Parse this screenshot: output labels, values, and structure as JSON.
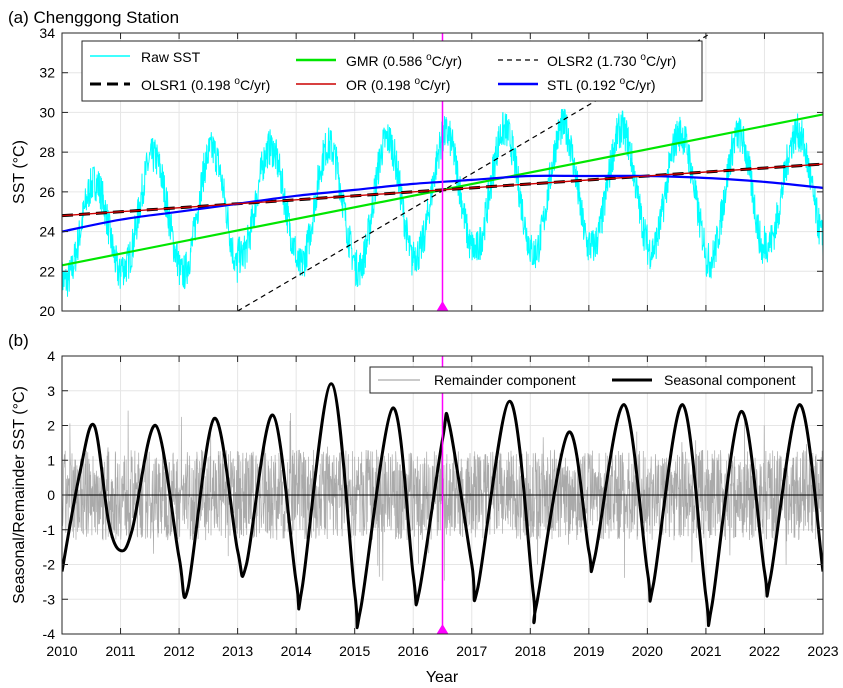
{
  "chart_data": [
    {
      "type": "line",
      "panel_label": "(a) Chenggong Station",
      "ylabel": "SST (°C)",
      "xlabel": "",
      "xlim": [
        2010,
        2023
      ],
      "ylim": [
        20,
        34
      ],
      "x_ticks": [
        2010,
        2011,
        2012,
        2013,
        2014,
        2015,
        2016,
        2017,
        2018,
        2019,
        2020,
        2021,
        2022,
        2023
      ],
      "y_ticks": [
        20,
        22,
        24,
        26,
        28,
        30,
        32,
        34
      ],
      "grid": true,
      "legend_position": "top",
      "vertical_marker": {
        "x": 2016.5,
        "color": "#ff00ff"
      },
      "raw_sst": {
        "name": "Raw SST",
        "color": "#00ffff",
        "annual_peak": [
          27.2,
          28.6,
          29.0,
          29.0,
          29.2,
          29.6,
          29.8,
          30.0,
          30.2,
          30.0,
          29.8,
          29.8,
          29.8
        ],
        "annual_trough": [
          20.8,
          21.4,
          21.0,
          22.0,
          21.4,
          21.2,
          22.0,
          22.2,
          22.0,
          22.4,
          22.2,
          21.6,
          22.6
        ]
      },
      "series": [
        {
          "name": "GMR",
          "rate_label": "(0.586 ",
          "unit_sup": "o",
          "unit_rest": "C/yr)",
          "color": "#00e600",
          "dash": "solid",
          "x": [
            2010,
            2023
          ],
          "y": [
            22.3,
            29.9
          ]
        },
        {
          "name": "OLSR2",
          "rate_label": "(1.730 ",
          "unit_sup": "o",
          "unit_rest": "C/yr)",
          "color": "#000000",
          "dash": "short-dash",
          "x": [
            2013.0,
            2023
          ],
          "y": [
            20.0,
            37.3
          ]
        },
        {
          "name": "OLSR1",
          "rate_label": "(0.198 ",
          "unit_sup": "o",
          "unit_rest": "C/yr)",
          "color": "#000000",
          "dash": "long-dash",
          "x": [
            2010,
            2023
          ],
          "y": [
            24.8,
            27.4
          ]
        },
        {
          "name": "OR",
          "rate_label": "(0.198 ",
          "unit_sup": "o",
          "unit_rest": "C/yr)",
          "color": "#cc0000",
          "dash": "solid",
          "x": [
            2010,
            2023
          ],
          "y": [
            24.8,
            27.4
          ]
        },
        {
          "name": "STL",
          "rate_label": "(0.192 ",
          "unit_sup": "o",
          "unit_rest": "C/yr)",
          "color": "#0000ff",
          "dash": "solid",
          "x": [
            2010,
            2011,
            2012,
            2013,
            2014,
            2015,
            2016,
            2017,
            2018,
            2019,
            2020,
            2021,
            2022,
            2023
          ],
          "y": [
            24.0,
            24.6,
            25.0,
            25.4,
            25.8,
            26.1,
            26.4,
            26.6,
            26.8,
            26.8,
            26.8,
            26.7,
            26.5,
            26.2
          ]
        }
      ],
      "legend_order": [
        "Raw SST",
        "GMR",
        "OLSR2",
        "OLSR1",
        "OR",
        "STL"
      ]
    },
    {
      "type": "line",
      "panel_label": "(b)",
      "ylabel": "Seasonal/Remainder SST (°C)",
      "xlabel": "Year",
      "xlim": [
        2010,
        2023
      ],
      "ylim": [
        -4,
        4
      ],
      "x_ticks": [
        2010,
        2011,
        2012,
        2013,
        2014,
        2015,
        2016,
        2017,
        2018,
        2019,
        2020,
        2021,
        2022,
        2023
      ],
      "y_ticks": [
        -4,
        -3,
        -2,
        -1,
        0,
        1,
        2,
        3,
        4
      ],
      "grid": true,
      "legend_position": "top-right",
      "vertical_marker": {
        "x": 2016.5,
        "color": "#ff00ff"
      },
      "series": [
        {
          "name": "Remainder component",
          "color": "#aaaaaa",
          "amplitude": 1.3
        },
        {
          "name": "Seasonal component",
          "color": "#000000",
          "x": [
            2010.0,
            2010.3,
            2010.55,
            2010.8,
            2011.0,
            2011.2,
            2011.6,
            2012.0,
            2012.15,
            2012.6,
            2013.0,
            2013.15,
            2013.6,
            2014.0,
            2014.1,
            2014.6,
            2015.0,
            2015.1,
            2015.65,
            2016.0,
            2016.1,
            2016.5,
            2016.62,
            2017.0,
            2017.1,
            2017.65,
            2018.05,
            2018.1,
            2018.65,
            2019.0,
            2019.1,
            2019.6,
            2020.0,
            2020.1,
            2020.6,
            2021.0,
            2021.1,
            2021.6,
            2022.0,
            2022.1,
            2022.6,
            2023.0
          ],
          "y": [
            -2.2,
            0.6,
            2.0,
            -0.8,
            -1.6,
            -1.0,
            2.0,
            -1.8,
            -2.7,
            2.2,
            -1.6,
            -2.0,
            2.3,
            -2.5,
            -2.7,
            3.2,
            -2.8,
            -3.3,
            2.5,
            -2.3,
            -2.8,
            1.6,
            2.0,
            -2.0,
            -2.7,
            2.7,
            -2.8,
            -3.2,
            1.8,
            -1.6,
            -1.8,
            2.6,
            -2.2,
            -2.6,
            2.6,
            -2.9,
            -3.2,
            2.4,
            -2.2,
            -2.4,
            2.6,
            -2.2
          ]
        }
      ]
    }
  ]
}
